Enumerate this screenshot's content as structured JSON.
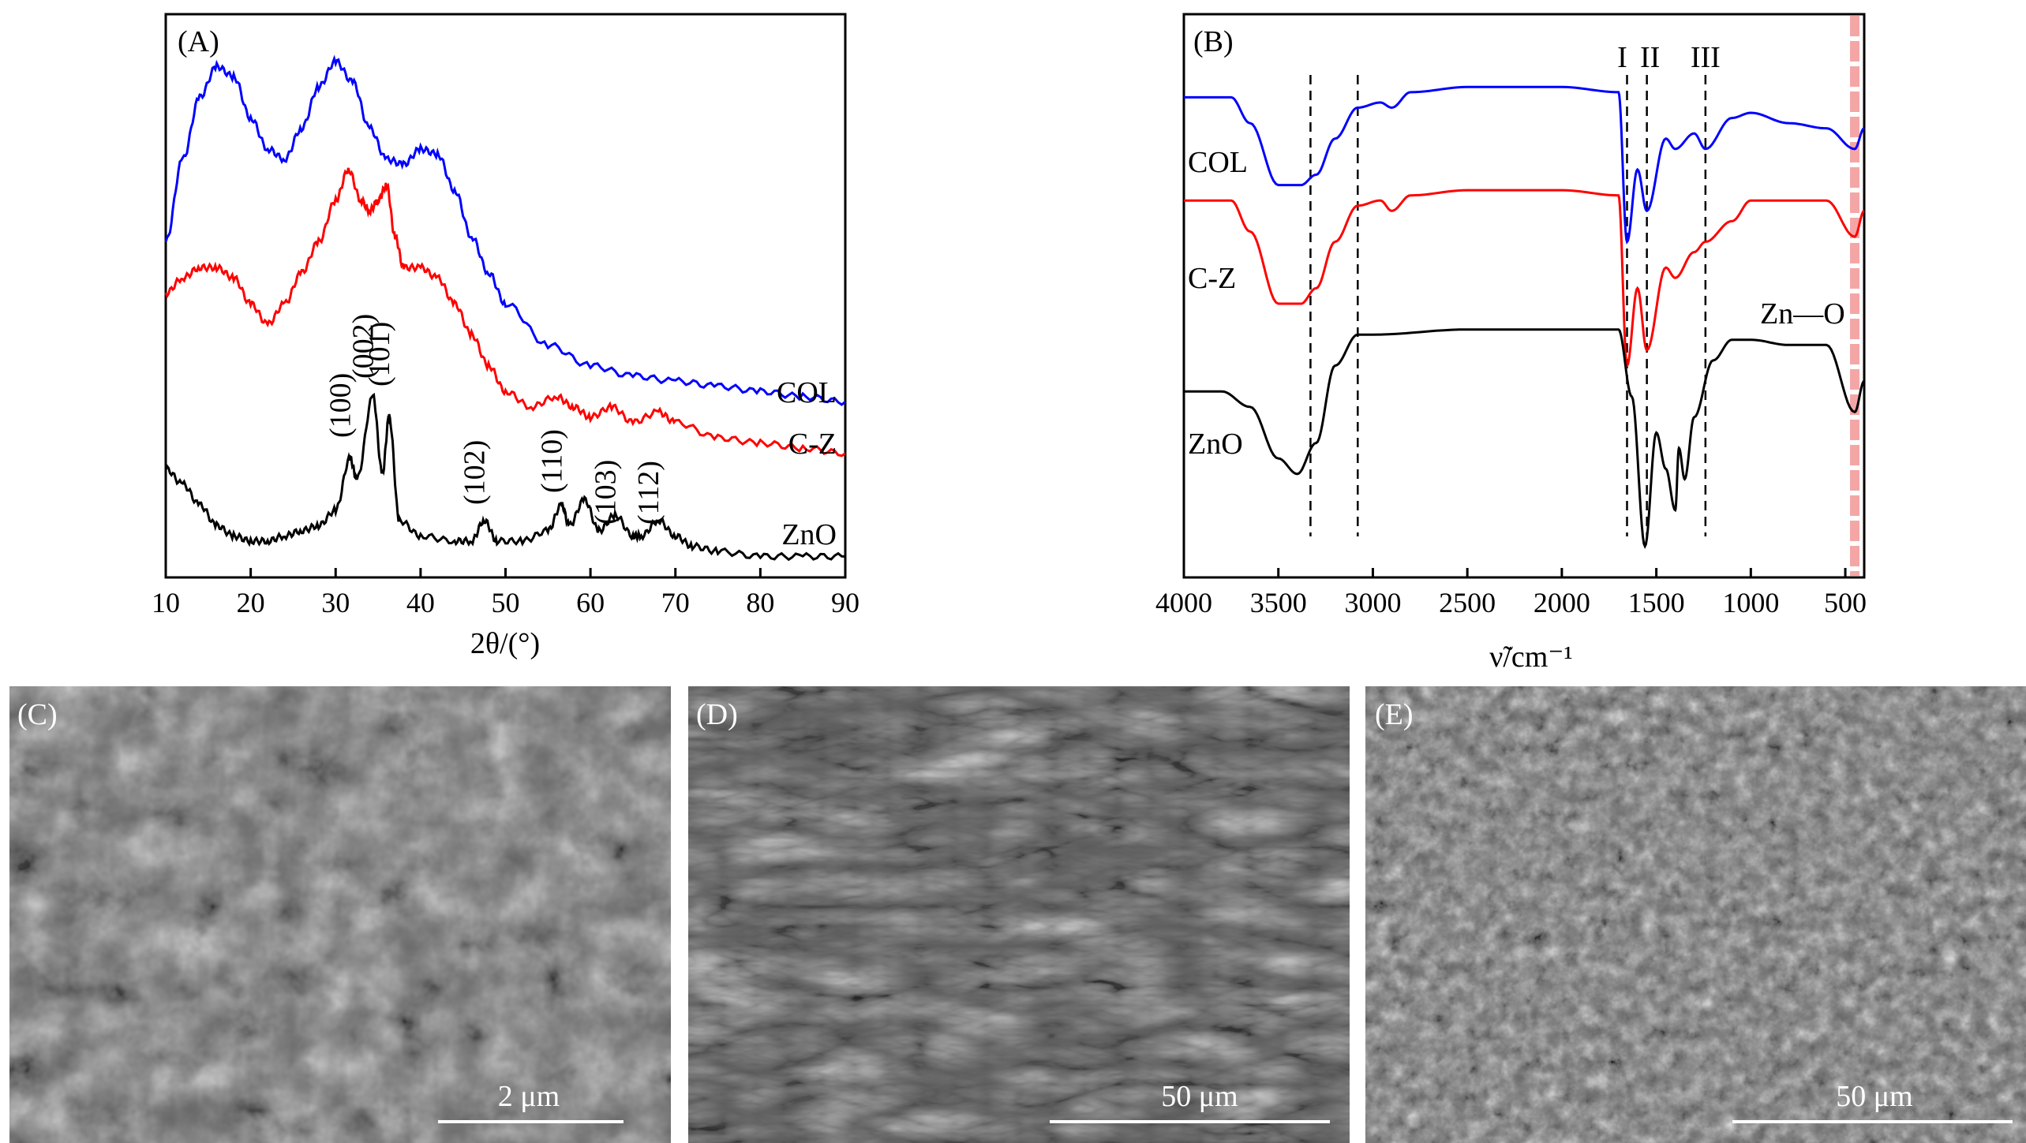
{
  "chart_data": [
    {
      "type": "line",
      "panel": "(A)",
      "xlabel": "2θ/(°)",
      "xlim": [
        10,
        90
      ],
      "xticks": [
        10,
        20,
        30,
        40,
        50,
        60,
        70,
        80,
        90
      ],
      "yaxis": "none",
      "series": [
        {
          "name": "COL",
          "color": "#0000ff",
          "x": [
            10,
            12,
            14,
            16,
            18,
            20,
            22,
            24,
            26,
            28,
            30,
            32,
            34,
            36,
            38,
            40,
            42,
            44,
            46,
            48,
            50,
            55,
            60,
            65,
            70,
            75,
            80,
            85,
            90
          ],
          "y": [
            0.62,
            0.78,
            0.9,
            0.96,
            0.94,
            0.86,
            0.8,
            0.78,
            0.84,
            0.92,
            0.97,
            0.93,
            0.84,
            0.78,
            0.77,
            0.8,
            0.79,
            0.72,
            0.63,
            0.56,
            0.5,
            0.42,
            0.38,
            0.36,
            0.35,
            0.34,
            0.33,
            0.32,
            0.31
          ]
        },
        {
          "name": "C-Z",
          "color": "#ff0000",
          "x": [
            10,
            12,
            14,
            16,
            18,
            20,
            22,
            24,
            26,
            28,
            30,
            31.5,
            33,
            34,
            35,
            36,
            37,
            38,
            40,
            42,
            44,
            46,
            48,
            50,
            53,
            56,
            58,
            60,
            62.5,
            65,
            68,
            70,
            75,
            80,
            85,
            90
          ],
          "y": [
            0.52,
            0.55,
            0.57,
            0.57,
            0.55,
            0.5,
            0.46,
            0.5,
            0.56,
            0.62,
            0.7,
            0.76,
            0.7,
            0.68,
            0.7,
            0.73,
            0.63,
            0.57,
            0.57,
            0.55,
            0.5,
            0.44,
            0.38,
            0.33,
            0.3,
            0.32,
            0.3,
            0.28,
            0.3,
            0.27,
            0.29,
            0.27,
            0.24,
            0.23,
            0.22,
            0.21
          ]
        },
        {
          "name": "ZnO",
          "color": "#000000",
          "x": [
            10,
            12,
            14,
            16,
            18,
            20,
            22,
            24,
            26,
            28,
            30,
            31.7,
            32.5,
            34.4,
            35.5,
            36.3,
            37.5,
            40,
            44,
            46,
            47.5,
            49,
            52,
            55,
            56.6,
            57.5,
            59.3,
            61,
            62.9,
            65,
            66,
            68,
            70,
            72,
            75,
            80,
            85,
            90
          ],
          "y": [
            0.18,
            0.15,
            0.11,
            0.07,
            0.05,
            0.04,
            0.04,
            0.05,
            0.06,
            0.07,
            0.1,
            0.2,
            0.16,
            0.32,
            0.17,
            0.28,
            0.08,
            0.05,
            0.04,
            0.04,
            0.08,
            0.04,
            0.04,
            0.06,
            0.11,
            0.07,
            0.12,
            0.06,
            0.09,
            0.05,
            0.05,
            0.08,
            0.05,
            0.03,
            0.02,
            0.01,
            0.01,
            0.01
          ]
        }
      ],
      "peak_labels": [
        {
          "label": "(100)",
          "x": 31.7
        },
        {
          "label": "(002)",
          "x": 34.4
        },
        {
          "label": "(101)",
          "x": 36.3
        },
        {
          "label": "(102)",
          "x": 47.5
        },
        {
          "label": "(110)",
          "x": 56.6
        },
        {
          "label": "(103)",
          "x": 62.9
        },
        {
          "label": "(112)",
          "x": 68
        }
      ]
    },
    {
      "type": "line",
      "panel": "(B)",
      "xlabel": "ν̃/cm⁻¹",
      "xlim": [
        4000,
        400
      ],
      "xticks": [
        4000,
        3500,
        3000,
        2500,
        2000,
        1500,
        1000,
        500
      ],
      "yaxis": "none",
      "series": [
        {
          "name": "COL",
          "color": "#0000ff",
          "x": [
            4000,
            3750,
            3650,
            3500,
            3380,
            3300,
            3200,
            3080,
            2960,
            2900,
            2800,
            2500,
            2000,
            1700,
            1655,
            1600,
            1550,
            1450,
            1400,
            1300,
            1240,
            1100,
            1000,
            800,
            600,
            450,
            400
          ],
          "y": [
            0.9,
            0.9,
            0.85,
            0.73,
            0.73,
            0.75,
            0.82,
            0.88,
            0.89,
            0.88,
            0.91,
            0.92,
            0.92,
            0.91,
            0.62,
            0.76,
            0.68,
            0.82,
            0.8,
            0.83,
            0.8,
            0.86,
            0.87,
            0.85,
            0.84,
            0.8,
            0.84
          ]
        },
        {
          "name": "C-Z",
          "color": "#ff0000",
          "x": [
            4000,
            3750,
            3650,
            3500,
            3380,
            3300,
            3200,
            3080,
            2960,
            2900,
            2800,
            2500,
            2000,
            1700,
            1655,
            1600,
            1550,
            1450,
            1400,
            1300,
            1240,
            1100,
            1000,
            800,
            600,
            450,
            400
          ],
          "y": [
            0.7,
            0.7,
            0.64,
            0.5,
            0.5,
            0.53,
            0.62,
            0.69,
            0.7,
            0.68,
            0.71,
            0.72,
            0.72,
            0.71,
            0.38,
            0.53,
            0.41,
            0.57,
            0.55,
            0.6,
            0.62,
            0.66,
            0.7,
            0.7,
            0.7,
            0.63,
            0.68
          ]
        },
        {
          "name": "ZnO",
          "color": "#000000",
          "x": [
            4000,
            3800,
            3650,
            3500,
            3400,
            3300,
            3200,
            3080,
            3000,
            2500,
            2000,
            1700,
            1630,
            1560,
            1500,
            1450,
            1400,
            1380,
            1350,
            1300,
            1200,
            1100,
            1000,
            800,
            600,
            450,
            400
          ],
          "y": [
            0.33,
            0.33,
            0.3,
            0.2,
            0.17,
            0.23,
            0.38,
            0.44,
            0.44,
            0.45,
            0.45,
            0.45,
            0.32,
            0.03,
            0.25,
            0.18,
            0.1,
            0.22,
            0.16,
            0.28,
            0.39,
            0.43,
            0.43,
            0.42,
            0.42,
            0.29,
            0.35
          ]
        }
      ],
      "band_labels": [
        {
          "label": "I",
          "x": 1655
        },
        {
          "label": "II",
          "x": 1550
        },
        {
          "label": "III",
          "x": 1240
        }
      ],
      "reference_lines_x": [
        3330,
        3080,
        1655,
        1550,
        1240
      ],
      "highlight": {
        "label": "Zn—O",
        "x": 450,
        "color": "#f4a6a6"
      }
    }
  ],
  "sem_images": [
    {
      "panel": "(C)",
      "scale": "2 μm"
    },
    {
      "panel": "(D)",
      "scale": "50 μm"
    },
    {
      "panel": "(E)",
      "scale": "50 μm"
    }
  ]
}
